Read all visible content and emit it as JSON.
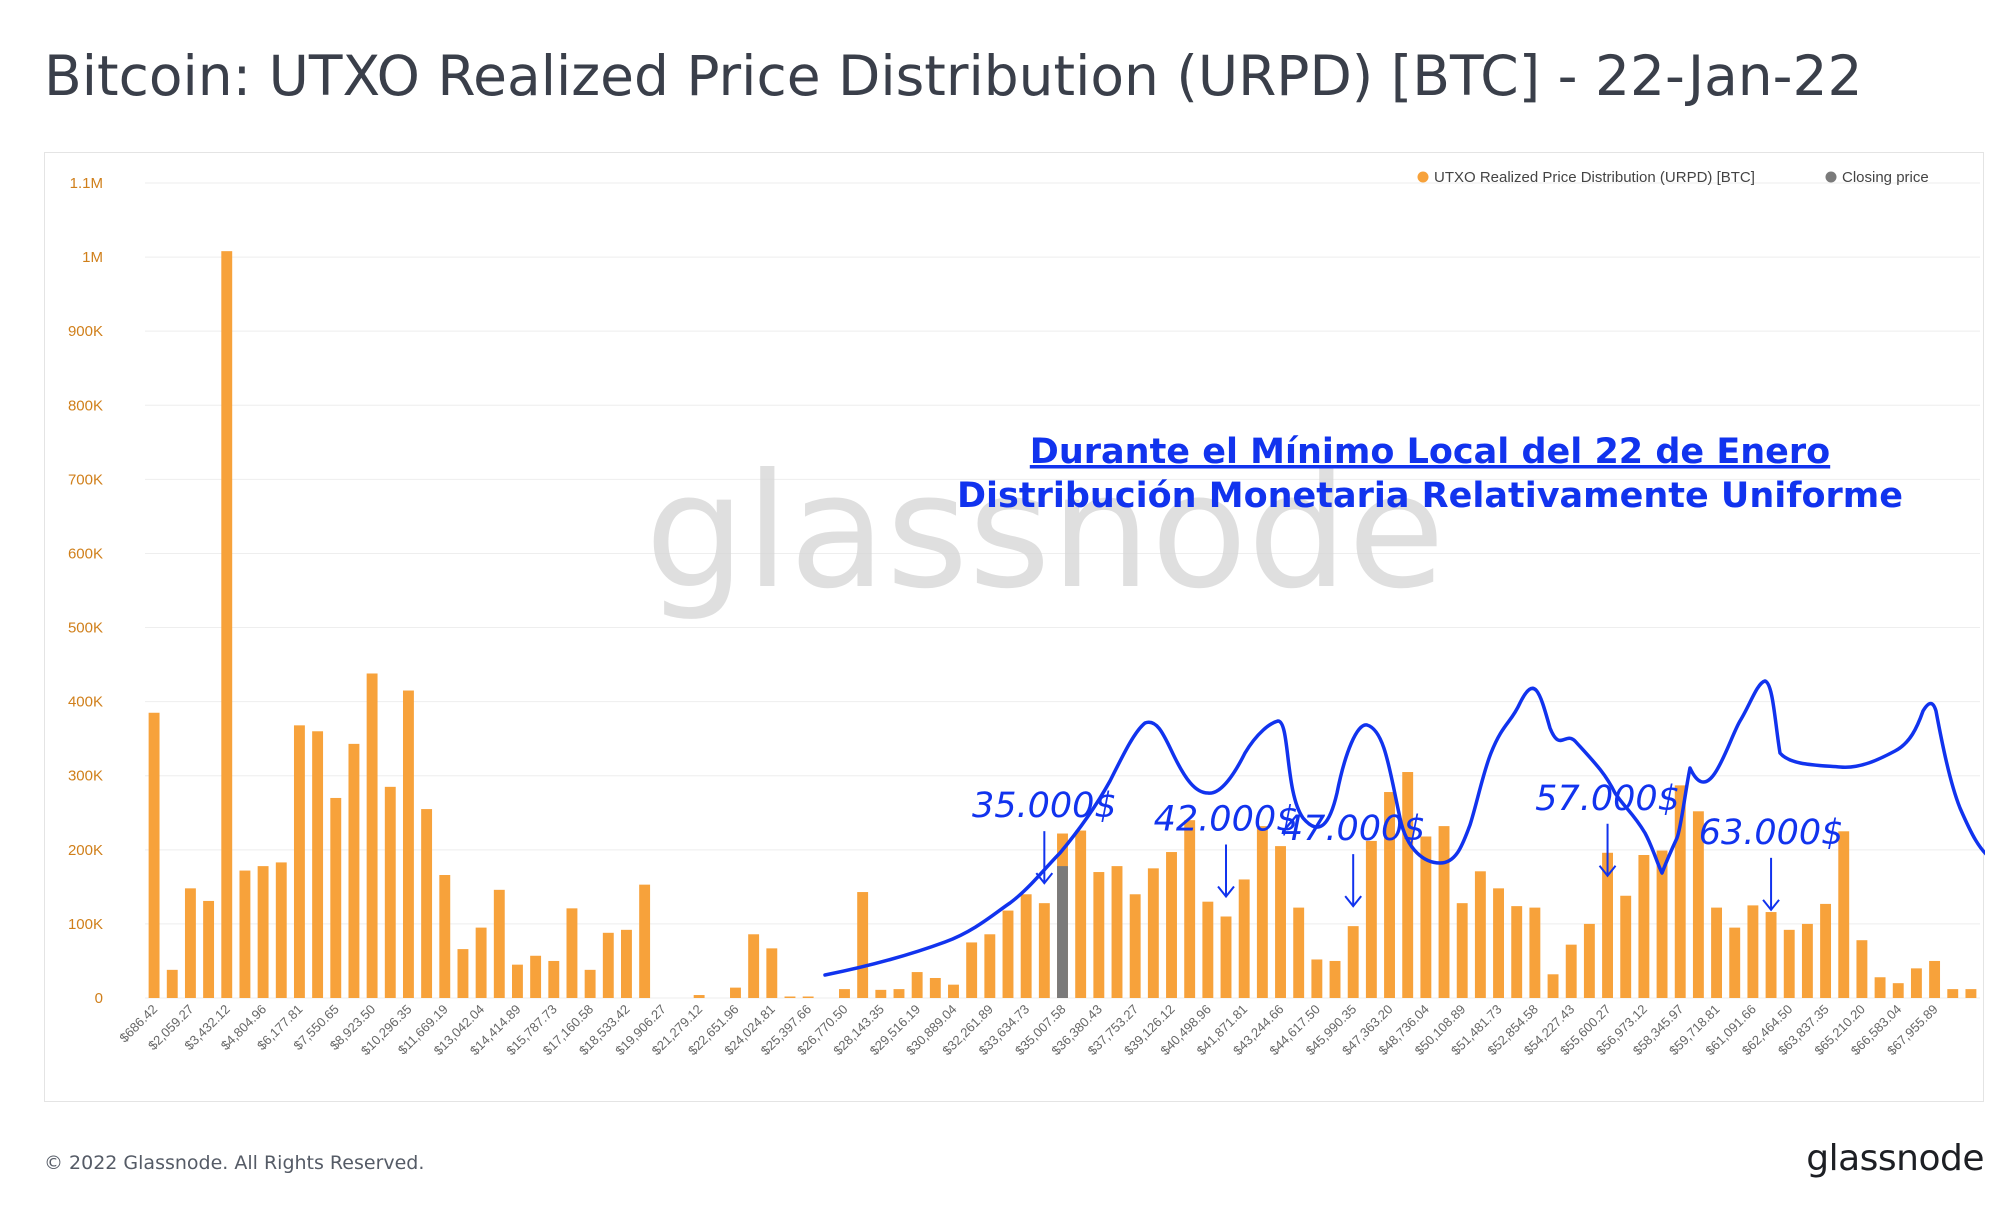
{
  "title": "Bitcoin: UTXO Realized Price Distribution (URPD) [BTC] - 22-Jan-22",
  "footer": {
    "copyright": "© 2022 Glassnode. All Rights Reserved.",
    "logo": "glassnode"
  },
  "watermark": "glassnode",
  "colors": {
    "bar": "#f7a23b",
    "closing": "#7a7a7a",
    "annotation": "#1133ee",
    "grid": "#eeeeee",
    "ytick": "#d07f1a",
    "xtick": "#666666"
  },
  "annotations": {
    "headline_1": "Durante el Mínimo Local del 22 de Enero",
    "headline_2": "Distribución Monetaria Relativamente Uniforme",
    "peaks": [
      {
        "label": "35.000$",
        "category_index": 49
      },
      {
        "label": "42.000$",
        "category_index": 59
      },
      {
        "label": "47.000$",
        "category_index": 66
      },
      {
        "label": "57.000$",
        "category_index": 80
      },
      {
        "label": "63.000$",
        "category_index": 89
      }
    ]
  },
  "chart_data": {
    "type": "bar",
    "title": "",
    "legend_position": "top-right",
    "grid": true,
    "ylim": [
      0,
      1100000
    ],
    "ytick_values": [
      0,
      100000,
      200000,
      300000,
      400000,
      500000,
      600000,
      700000,
      800000,
      900000,
      1000000,
      1100000
    ],
    "ytick_labels": [
      "0",
      "100K",
      "200K",
      "300K",
      "400K",
      "500K",
      "600K",
      "700K",
      "800K",
      "900K",
      "1M",
      "1.1M"
    ],
    "xtick_labels": [
      "$686.42",
      "$2,059.27",
      "$3,432.12",
      "$4,804.96",
      "$6,177.81",
      "$7,550.65",
      "$8,923.50",
      "$10,296.35",
      "$11,669.19",
      "$13,042.04",
      "$14,414.89",
      "$15,787.73",
      "$17,160.58",
      "$18,533.42",
      "$19,906.27",
      "$21,279.12",
      "$22,651.96",
      "$24,024.81",
      "$25,397.66",
      "$26,770.50",
      "$28,143.35",
      "$29,516.19",
      "$30,889.04",
      "$32,261.89",
      "$33,634.73",
      "$35,007.58",
      "$36,380.43",
      "$37,753.27",
      "$39,126.12",
      "$40,498.96",
      "$41,871.81",
      "$43,244.66",
      "$44,617.50",
      "$45,990.35",
      "$47,363.20",
      "$48,736.04",
      "$50,108.89",
      "$51,481.73",
      "$52,854.58",
      "$54,227.43",
      "$55,600.27",
      "$56,973.12",
      "$58,345.97",
      "$59,718.81",
      "$61,091.66",
      "$62,464.50",
      "$63,837.35",
      "$65,210.20",
      "$66,583.04",
      "$67,955.89"
    ],
    "closing_price_index": 50,
    "series": [
      {
        "name": "UTXO Realized Price Distribution (URPD) [BTC]",
        "values": [
          385000,
          38000,
          148000,
          131000,
          1008000,
          172000,
          178000,
          183000,
          368000,
          360000,
          270000,
          343000,
          438000,
          285000,
          415000,
          255000,
          166000,
          66000,
          95000,
          146000,
          45000,
          57000,
          50000,
          121000,
          38000,
          88000,
          92000,
          153000,
          0,
          0,
          4000,
          0,
          14000,
          86000,
          67000,
          2000,
          2000,
          0,
          12000,
          143000,
          11000,
          12000,
          35000,
          27000,
          18000,
          75000,
          86000,
          118000,
          140000,
          128000,
          222000,
          226000,
          170000,
          178000,
          140000,
          175000,
          197000,
          240000,
          130000,
          110000,
          160000,
          232000,
          205000,
          122000,
          52000,
          50000,
          97000,
          212000,
          278000,
          305000,
          218000,
          232000,
          128000,
          171000,
          148000,
          124000,
          122000,
          32000,
          72000,
          100000,
          196000,
          138000,
          193000,
          199000,
          287000,
          252000,
          122000,
          95000,
          125000,
          116000,
          92000,
          100000,
          127000,
          225000,
          78000,
          28000,
          20000,
          40000,
          50000,
          12000,
          12000
        ]
      },
      {
        "name": "Closing price",
        "values": [
          178000
        ]
      }
    ]
  }
}
